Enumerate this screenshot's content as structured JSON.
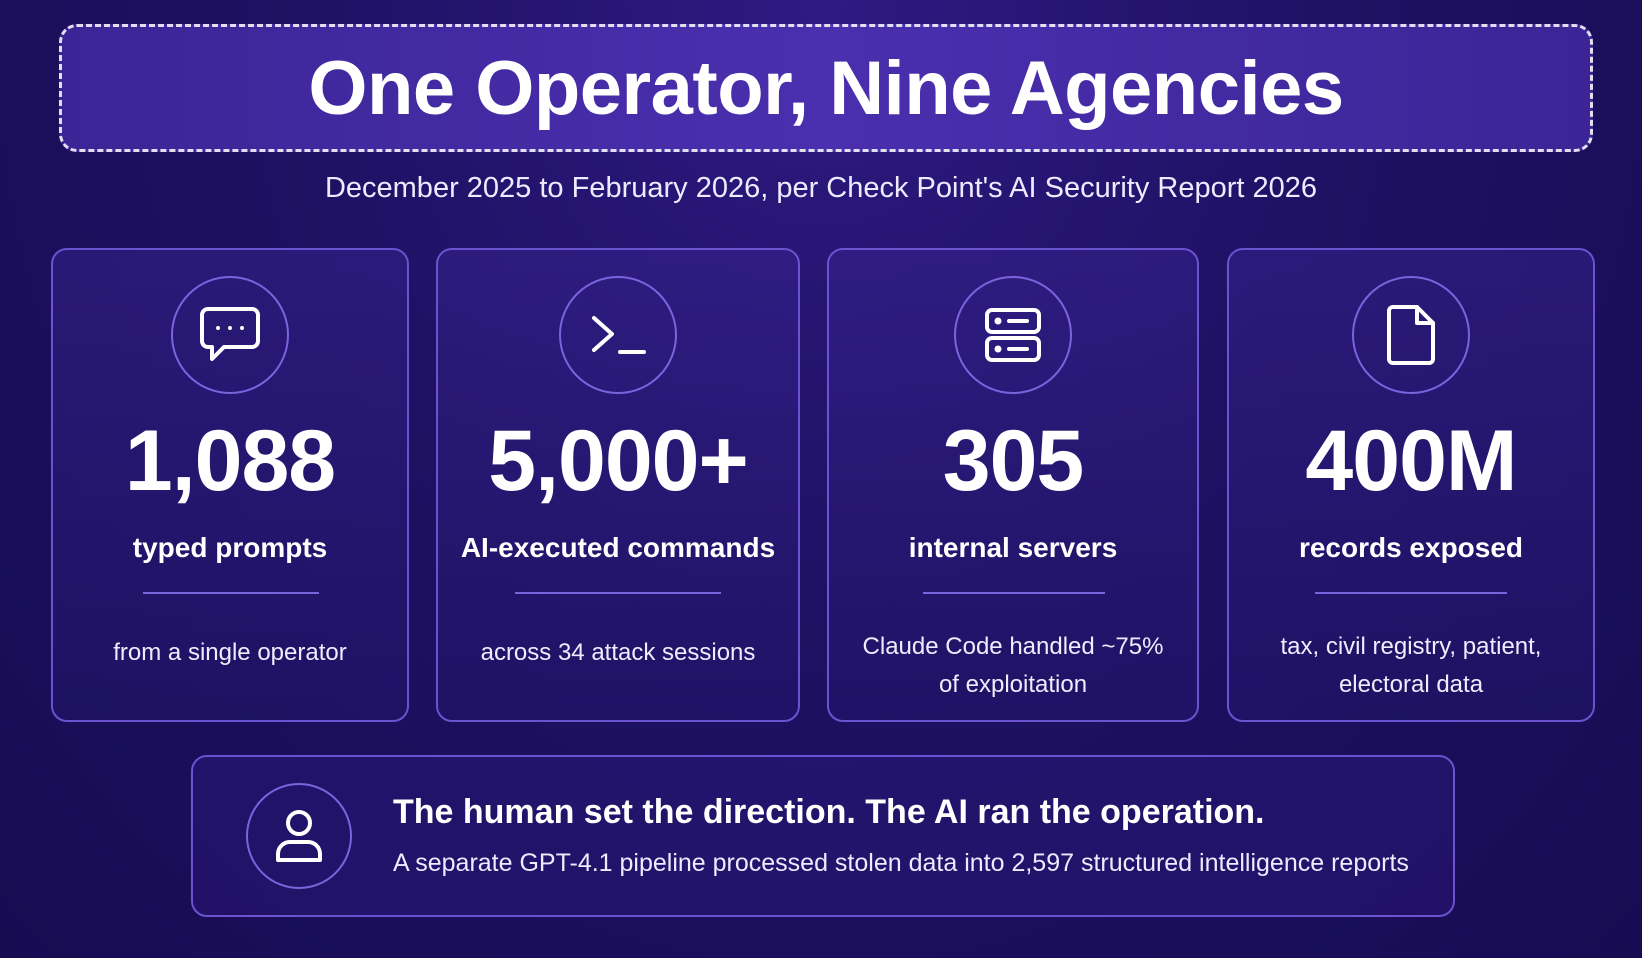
{
  "header": {
    "title": "One Operator, Nine Agencies",
    "subtitle": "December 2025 to February 2026, per Check Point's AI Security Report 2026"
  },
  "stats": [
    {
      "icon": "chat-bubble-icon",
      "value": "1,088",
      "label": "typed prompts",
      "note": "from a single operator"
    },
    {
      "icon": "terminal-icon",
      "value": "5,000+",
      "label": "AI-executed commands",
      "note": "across 34 attack sessions"
    },
    {
      "icon": "server-icon",
      "value": "305",
      "label": "internal servers",
      "note_lines": [
        "Claude Code handled ~75%",
        "of exploitation"
      ]
    },
    {
      "icon": "document-icon",
      "value": "400M",
      "label": "records exposed",
      "note_lines": [
        "tax, civil registry, patient,",
        "electoral data"
      ]
    }
  ],
  "summary": {
    "icon": "user-icon",
    "headline": "The human set the direction. The AI ran the operation.",
    "detail": "A separate GPT-4.1 pipeline processed stolen data into 2,597 structured intelligence reports"
  },
  "colors": {
    "background": "#1d1060",
    "card_border": "#6a52d0",
    "accent": "#7b63de",
    "text": "#ffffff"
  }
}
